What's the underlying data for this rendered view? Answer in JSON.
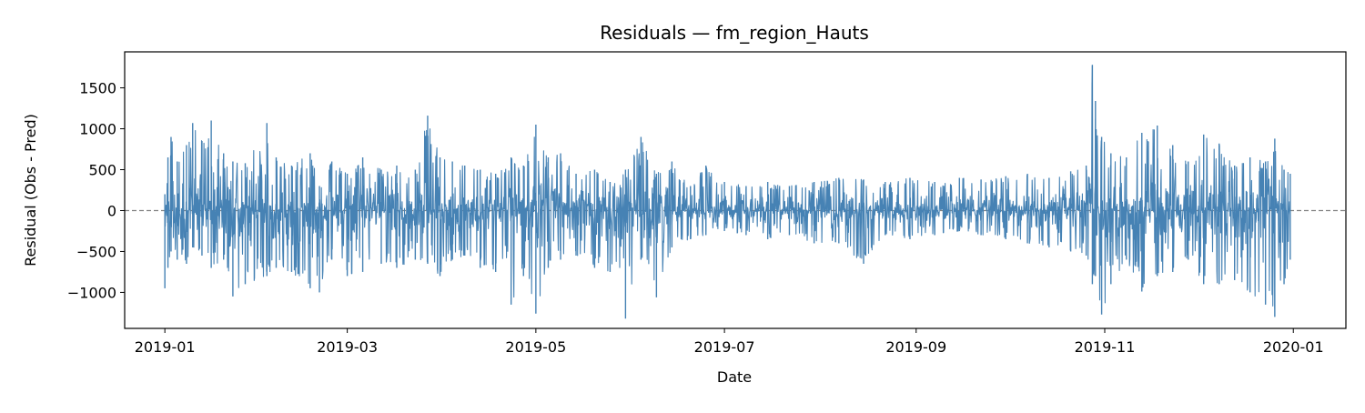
{
  "chart_data": {
    "type": "line",
    "title": "Residuals — fm_region_Hauts",
    "xlabel": "Date",
    "ylabel": "Residual (Obs - Pred)",
    "x_range": [
      "2019-01-01",
      "2019-12-31"
    ],
    "xlim": [
      "2018-12-19",
      "2020-01-18"
    ],
    "ylim": [
      -1440,
      1940
    ],
    "x_ticks": [
      "2019-01",
      "2019-03",
      "2019-05",
      "2019-07",
      "2019-09",
      "2019-11",
      "2020-01"
    ],
    "y_ticks": [
      -1000,
      -500,
      0,
      500,
      1000,
      1500
    ],
    "y_tick_labels": [
      "−1000",
      "−500",
      "0",
      "500",
      "1000",
      "1500"
    ],
    "reference_line": {
      "y": 0,
      "style": "dashed",
      "color": "#808080"
    },
    "grid": false,
    "series": [
      {
        "color": "#4682b4",
        "sampling": "daily envelope (approximate)",
        "x": [
          "2019-01-01",
          "2019-01-02",
          "2019-01-03",
          "2019-01-05",
          "2019-01-08",
          "2019-01-10",
          "2019-01-13",
          "2019-01-16",
          "2019-01-20",
          "2019-01-23",
          "2019-01-27",
          "2019-02-03",
          "2019-02-06",
          "2019-02-11",
          "2019-02-17",
          "2019-02-20",
          "2019-02-24",
          "2019-03-01",
          "2019-03-06",
          "2019-03-12",
          "2019-03-17",
          "2019-03-23",
          "2019-03-27",
          "2019-03-31",
          "2019-04-04",
          "2019-04-08",
          "2019-04-13",
          "2019-04-18",
          "2019-04-23",
          "2019-04-27",
          "2019-05-01",
          "2019-05-05",
          "2019-05-09",
          "2019-05-14",
          "2019-05-20",
          "2019-05-25",
          "2019-05-30",
          "2019-06-04",
          "2019-06-09",
          "2019-06-14",
          "2019-06-20",
          "2019-06-25",
          "2019-07-01",
          "2019-07-08",
          "2019-07-15",
          "2019-07-22",
          "2019-07-30",
          "2019-08-07",
          "2019-08-15",
          "2019-08-22",
          "2019-08-30",
          "2019-09-07",
          "2019-09-15",
          "2019-09-22",
          "2019-09-30",
          "2019-10-07",
          "2019-10-14",
          "2019-10-21",
          "2019-10-26",
          "2019-10-28",
          "2019-10-29",
          "2019-10-31",
          "2019-11-03",
          "2019-11-08",
          "2019-11-13",
          "2019-11-18",
          "2019-11-23",
          "2019-11-28",
          "2019-12-03",
          "2019-12-08",
          "2019-12-13",
          "2019-12-18",
          "2019-12-23",
          "2019-12-26",
          "2019-12-29",
          "2019-12-31"
        ],
        "high": [
          200,
          650,
          900,
          600,
          800,
          1070,
          850,
          1100,
          700,
          600,
          580,
          1070,
          650,
          550,
          700,
          300,
          600,
          450,
          650,
          500,
          550,
          500,
          1160,
          650,
          600,
          550,
          500,
          450,
          650,
          550,
          1050,
          650,
          700,
          450,
          500,
          350,
          500,
          900,
          450,
          600,
          300,
          550,
          350,
          300,
          350,
          300,
          350,
          400,
          380,
          350,
          400,
          350,
          400,
          380,
          420,
          450,
          400,
          480,
          550,
          1780,
          1340,
          900,
          700,
          650,
          950,
          1040,
          800,
          600,
          930,
          820,
          550,
          650,
          600,
          880,
          500,
          450
        ],
        "low": [
          -950,
          -700,
          -500,
          -600,
          -650,
          -450,
          -550,
          -700,
          -600,
          -1050,
          -900,
          -800,
          -700,
          -750,
          -950,
          -1000,
          -600,
          -800,
          -750,
          -650,
          -700,
          -600,
          -650,
          -800,
          -600,
          -550,
          -700,
          -750,
          -1150,
          -800,
          -1260,
          -700,
          -600,
          -550,
          -700,
          -750,
          -1320,
          -600,
          -1060,
          -450,
          -350,
          -300,
          -250,
          -300,
          -350,
          -300,
          -400,
          -400,
          -650,
          -300,
          -350,
          -300,
          -250,
          -300,
          -350,
          -400,
          -450,
          -500,
          -550,
          -900,
          -800,
          -1270,
          -900,
          -600,
          -990,
          -800,
          -750,
          -600,
          -900,
          -900,
          -850,
          -1000,
          -1150,
          -1300,
          -900,
          -600
        ]
      }
    ]
  }
}
